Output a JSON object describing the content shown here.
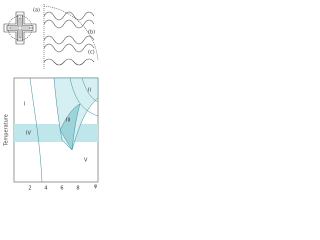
{
  "panel_labels": [
    "(a)",
    "(b)",
    "(c)"
  ],
  "axes": {
    "y_label": "Temperature",
    "x_label": "φ"
  },
  "regions": [
    "I",
    "II",
    "III",
    "IV",
    "V"
  ],
  "x_ticks": [
    "2",
    "4",
    "6",
    "8"
  ]
}
